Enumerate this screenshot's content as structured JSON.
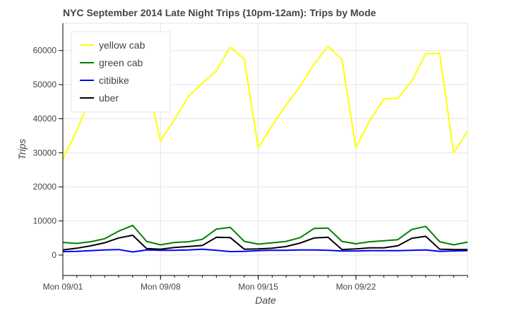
{
  "chart_data": {
    "type": "line",
    "title": "NYC September 2014 Late Night Trips (10pm-12am): Trips by Mode",
    "xlabel": "Date",
    "ylabel": "Trips",
    "x_range": [
      "2014-09-01",
      "2014-09-30"
    ],
    "ylim": [
      -6000,
      68000
    ],
    "y_ticks": [
      0,
      10000,
      20000,
      30000,
      40000,
      50000,
      60000
    ],
    "x_ticks": [
      {
        "date": "2014-09-01",
        "label": "Mon 09/01"
      },
      {
        "date": "2014-09-08",
        "label": "Mon 09/08"
      },
      {
        "date": "2014-09-15",
        "label": "Mon 09/15"
      },
      {
        "date": "2014-09-22",
        "label": "Mon 09/22"
      }
    ],
    "grid": true,
    "legend_position": "top-left",
    "x": [
      "2014-09-01",
      "2014-09-02",
      "2014-09-03",
      "2014-09-04",
      "2014-09-05",
      "2014-09-06",
      "2014-09-07",
      "2014-09-08",
      "2014-09-09",
      "2014-09-10",
      "2014-09-11",
      "2014-09-12",
      "2014-09-13",
      "2014-09-14",
      "2014-09-15",
      "2014-09-16",
      "2014-09-17",
      "2014-09-18",
      "2014-09-19",
      "2014-09-20",
      "2014-09-21",
      "2014-09-22",
      "2014-09-23",
      "2014-09-24",
      "2014-09-25",
      "2014-09-26",
      "2014-09-27",
      "2014-09-28",
      "2014-09-29",
      "2014-09-30"
    ],
    "series": [
      {
        "name": "yellow cab",
        "color": "#ffff00",
        "values": [
          28200,
          36500,
          46500,
          51000,
          55500,
          60000,
          51000,
          33500,
          39800,
          46500,
          50500,
          54000,
          61000,
          57500,
          31500,
          38000,
          44000,
          49500,
          56000,
          61200,
          57400,
          31500,
          39500,
          45800,
          46000,
          51000,
          59000,
          59200,
          30000,
          36200
        ]
      },
      {
        "name": "green cab",
        "color": "#008000",
        "values": [
          3700,
          3400,
          3900,
          4800,
          7000,
          8700,
          4000,
          3000,
          3700,
          3900,
          4600,
          7600,
          8100,
          4000,
          3200,
          3600,
          4000,
          5100,
          7800,
          7900,
          4000,
          3300,
          3900,
          4200,
          4500,
          7500,
          8400,
          3900,
          3000,
          3800
        ]
      },
      {
        "name": "citibike",
        "color": "#0000ff",
        "values": [
          1000,
          1100,
          1300,
          1500,
          1600,
          900,
          1500,
          1400,
          1400,
          1500,
          1700,
          1400,
          1000,
          1100,
          1300,
          1400,
          1400,
          1500,
          1500,
          1400,
          1200,
          1200,
          1300,
          1300,
          1300,
          1400,
          1500,
          1100,
          1200,
          1300
        ]
      },
      {
        "name": "uber",
        "color": "#000000",
        "values": [
          1500,
          2000,
          2700,
          3600,
          5000,
          5800,
          1900,
          1700,
          2200,
          2500,
          2800,
          5200,
          5100,
          1700,
          1800,
          2000,
          2500,
          3500,
          5000,
          5200,
          1600,
          1800,
          2100,
          2100,
          2700,
          4900,
          5500,
          1700,
          1600,
          1600
        ]
      }
    ]
  }
}
